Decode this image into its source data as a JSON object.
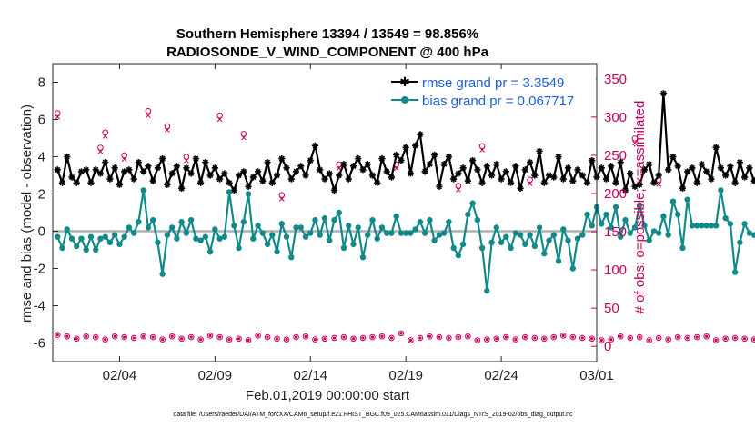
{
  "chart_data": {
    "type": "line",
    "title": "Southern Hemisphere 13394 / 13549 = 98.856%",
    "subtitle": "RADIOSONDE_V_WIND_COMPONENT @ 400 hPa",
    "xlabel": "Feb.01,2019 00:00:00 start",
    "ylabel": "rmse and bias (model - observation)",
    "y2label": "# of obs: o=possible; ×=assimilated",
    "footnote": "data file: /Users/raeder/DAI/ATM_forcXX/CAM6_setup/f.e21.FHIST_BGC.f09_025.CAM6assim.011/Diags_NTrS_2019-02/obs_diag_output.nc",
    "xlim": [
      0.5,
      29
    ],
    "ylim": [
      -7,
      9
    ],
    "y2lim": [
      -20,
      370
    ],
    "x_ticks": [
      {
        "value": 4,
        "label": "02/04"
      },
      {
        "value": 9,
        "label": "02/09"
      },
      {
        "value": 14,
        "label": "02/14"
      },
      {
        "value": 19,
        "label": "02/19"
      },
      {
        "value": 24,
        "label": "02/24"
      },
      {
        "value": 29,
        "label": "03/01"
      }
    ],
    "y_ticks": [
      {
        "value": 8,
        "label": "8"
      },
      {
        "value": 6,
        "label": "6"
      },
      {
        "value": 4,
        "label": "4"
      },
      {
        "value": 2,
        "label": "2"
      },
      {
        "value": 0,
        "label": "0"
      },
      {
        "value": -2,
        "label": "-2"
      },
      {
        "value": -4,
        "label": "-4"
      },
      {
        "value": -6,
        "label": "-6"
      }
    ],
    "y2_ticks": [
      {
        "value": 350,
        "label": "350"
      },
      {
        "value": 300,
        "label": "300"
      },
      {
        "value": 250,
        "label": "250"
      },
      {
        "value": 200,
        "label": "200"
      },
      {
        "value": 150,
        "label": "150"
      },
      {
        "value": 100,
        "label": "100"
      },
      {
        "value": 50,
        "label": "50"
      },
      {
        "value": 0,
        "label": "0"
      }
    ],
    "x_start": 0.75,
    "x_step": 0.25,
    "series": [
      {
        "name": "rmse grand pr = 3.3549",
        "color": "#000000",
        "marker": "asterisk",
        "values": [
          3.3,
          2.6,
          4.0,
          2.9,
          2.6,
          3.2,
          3.3,
          2.6,
          3.3,
          3.1,
          3.7,
          2.8,
          3.4,
          2.5,
          3.2,
          3.3,
          2.8,
          3.7,
          3.2,
          3.5,
          2.7,
          3.4,
          3.9,
          2.5,
          3.1,
          3.5,
          2.3,
          3.4,
          3.1,
          3.9,
          2.6,
          3.7,
          3.0,
          3.4,
          2.8,
          3.1,
          2.6,
          2.2,
          3.0,
          3.2,
          2.4,
          2.9,
          3.2,
          2.7,
          3.7,
          2.6,
          3.0,
          3.9,
          3.4,
          2.8,
          3.2,
          3.5,
          3.0,
          3.8,
          4.6,
          3.3,
          2.8,
          3.1,
          2.2,
          3.0,
          3.6,
          2.8,
          3.5,
          3.9,
          3.3,
          3.6,
          3.0,
          2.6,
          3.9,
          3.2,
          2.9,
          4.1,
          3.8,
          4.5,
          3.1,
          4.6,
          5.2,
          3.2,
          3.6,
          4.1,
          2.4,
          3.6,
          4.0,
          2.8,
          3.1,
          3.4,
          2.7,
          3.8,
          3.3,
          2.6,
          3.5,
          3.0,
          3.6,
          2.8,
          3.2,
          2.6,
          3.5,
          2.3,
          3.3,
          3.7,
          3.0,
          4.3,
          2.6,
          3.0,
          2.9,
          4.0,
          2.8,
          3.4,
          2.7,
          3.3,
          3.0,
          2.6,
          3.8,
          2.9,
          3.4,
          2.8,
          3.5,
          2.6,
          3.7,
          2.2,
          3.1,
          2.4,
          2.5,
          3.3,
          3.6,
          2.6,
          3.0,
          7.4,
          3.3,
          4.0,
          3.5,
          2.3,
          3.2,
          3.4,
          2.6,
          3.6,
          3.2,
          2.8,
          4.5,
          3.4,
          3.0,
          3.5,
          2.6,
          3.7,
          2.9,
          3.4,
          2.7,
          3.3,
          2.5,
          3.9,
          2.6,
          3.4,
          2.1,
          3.5,
          2.9,
          3.9
        ]
      },
      {
        "name": "bias grand pr = 0.067717",
        "color": "#138a8a",
        "marker": "dot",
        "values": [
          -0.3,
          -0.9,
          0.1,
          -0.4,
          -0.8,
          -0.4,
          -1.0,
          -0.3,
          -1.0,
          -0.4,
          -0.3,
          -0.6,
          -0.2,
          -0.7,
          -0.3,
          0.2,
          -0.1,
          0.5,
          2.2,
          0.2,
          0.6,
          -0.6,
          -2.3,
          -0.2,
          0.2,
          -0.4,
          0.5,
          -0.1,
          0.6,
          -0.4,
          -0.5,
          -0.3,
          -1.1,
          0.1,
          -0.4,
          -0.3,
          2.1,
          0.3,
          -0.9,
          0.5,
          2.0,
          -0.4,
          0.3,
          -0.1,
          -0.7,
          -0.2,
          -1.1,
          0.4,
          -0.3,
          -1.4,
          0.2,
          0.2,
          -0.3,
          -0.1,
          0.6,
          -0.2,
          0.7,
          -0.5,
          0.6,
          1.0,
          -0.9,
          0.3,
          -0.7,
          0.2,
          -1.4,
          -0.2,
          0.6,
          -0.4,
          0.2,
          -0.1,
          -0.1,
          0.8,
          -0.1,
          -0.1,
          -0.1,
          0.1,
          0.5,
          -0.1,
          0.6,
          -0.5,
          -0.2,
          -0.1,
          0.5,
          -0.9,
          -1.3,
          -0.7,
          0.9,
          1.5,
          0.6,
          -0.9,
          -3.2,
          -0.6,
          0.2,
          -0.6,
          -0.3,
          -0.9,
          -0.1,
          -0.2,
          -0.7,
          -0.2,
          -0.8,
          0.2,
          -1.2,
          -0.5,
          -0.2,
          -1.6,
          0.1,
          -0.5,
          -2.0,
          -0.4,
          -0.2,
          0.9,
          0.3,
          1.3,
          0.4,
          0.9,
          0.2,
          1.3,
          -0.3,
          0.6,
          -0.1,
          0.2,
          1.4,
          0.3,
          -0.5,
          0.0,
          -0.1,
          0.8,
          -0.2,
          1.6,
          0.9,
          -0.9,
          1.7,
          0.3,
          0.3,
          0.3,
          0.3,
          0.3,
          0.3,
          2.2,
          0.7,
          0.4,
          -2.2,
          -0.6,
          0.4,
          -0.1,
          -0.2,
          -0.7,
          0.4,
          2.2,
          0.2,
          -0.4,
          -0.1,
          0.4,
          -1.2,
          0.6,
          -0.2,
          -0.3
        ]
      }
    ],
    "obs_possible": [
      305,
      0,
      0,
      0,
      0,
      0,
      0,
      0,
      0,
      260,
      280,
      0,
      0,
      0,
      250,
      0,
      0,
      0,
      0,
      308,
      0,
      0,
      0,
      288,
      0,
      0,
      0,
      248,
      0,
      0,
      0,
      0,
      0,
      0,
      302,
      0,
      0,
      0,
      0,
      278,
      0,
      0,
      0,
      0,
      0,
      0,
      0,
      198,
      0,
      0,
      0,
      0,
      0,
      0,
      0,
      0,
      0,
      0,
      0,
      238,
      0,
      0,
      0,
      0,
      0,
      0,
      0,
      0,
      0,
      0,
      0,
      238,
      0,
      0,
      0,
      0,
      0,
      0,
      0,
      0,
      0,
      0,
      0,
      0,
      210,
      0,
      0,
      0,
      0,
      262,
      0,
      0,
      0,
      0,
      0,
      0,
      0,
      0,
      0,
      218,
      0,
      0,
      0,
      0,
      0,
      0,
      0,
      0,
      0,
      0,
      0,
      0,
      0,
      0,
      0,
      0,
      0,
      0,
      0,
      0,
      0,
      272,
      0,
      0,
      0,
      0,
      218,
      0,
      0,
      0,
      0,
      0,
      0,
      0,
      0,
      0,
      0,
      0,
      0,
      0,
      0,
      0,
      0,
      0,
      0,
      0,
      0,
      0,
      0,
      0,
      0,
      0,
      0,
      0,
      0,
      0,
      0,
      0
    ],
    "obs_assim": [
      300,
      0,
      0,
      0,
      0,
      0,
      0,
      0,
      0,
      255,
      275,
      0,
      0,
      0,
      245,
      0,
      0,
      0,
      0,
      302,
      0,
      0,
      0,
      283,
      0,
      0,
      0,
      243,
      0,
      0,
      0,
      0,
      0,
      0,
      297,
      0,
      0,
      0,
      0,
      273,
      0,
      0,
      0,
      0,
      0,
      0,
      0,
      193,
      0,
      0,
      0,
      0,
      0,
      0,
      0,
      0,
      0,
      0,
      0,
      233,
      0,
      0,
      0,
      0,
      0,
      0,
      0,
      0,
      0,
      0,
      0,
      233,
      0,
      0,
      0,
      0,
      0,
      0,
      0,
      0,
      0,
      0,
      0,
      0,
      205,
      0,
      0,
      0,
      0,
      257,
      0,
      0,
      0,
      0,
      0,
      0,
      0,
      0,
      0,
      213,
      0,
      0,
      0,
      0,
      0,
      0,
      0,
      0,
      0,
      0,
      0,
      0,
      0,
      0,
      0,
      0,
      0,
      0,
      0,
      0,
      0,
      266,
      0,
      0,
      0,
      0,
      212,
      0,
      0,
      0,
      0,
      0,
      0,
      0,
      0,
      0,
      0,
      0,
      0,
      0,
      0,
      0,
      0,
      0,
      0,
      0,
      0,
      0,
      0,
      0,
      0,
      0,
      0,
      0,
      0,
      0,
      0,
      0
    ],
    "obs_low": [
      15,
      12,
      13,
      14,
      10,
      11,
      13,
      8,
      12,
      11,
      9,
      14,
      13,
      10,
      12,
      8,
      11,
      18,
      13,
      10,
      12,
      14,
      9,
      11,
      13,
      12,
      10,
      8,
      12,
      11,
      9,
      13,
      14,
      10,
      12,
      11,
      9,
      13,
      10,
      12,
      8,
      11,
      14,
      9,
      12,
      13,
      10,
      11,
      9,
      7,
      12,
      10,
      13,
      11,
      9,
      12,
      10,
      14,
      11,
      8,
      12,
      13,
      10,
      9,
      11,
      14,
      12,
      10,
      13,
      9,
      11,
      12,
      17,
      10,
      8,
      12,
      11,
      9,
      13,
      10,
      12,
      14,
      11,
      9,
      12,
      10,
      13,
      11,
      8,
      12,
      9,
      14,
      10,
      11,
      12,
      13,
      9,
      10,
      12,
      8,
      11,
      13,
      10,
      9,
      12,
      11,
      14,
      10,
      12,
      9,
      11,
      13,
      10,
      12,
      8,
      11,
      9,
      12,
      13,
      10,
      11,
      9,
      12,
      10,
      8,
      12,
      11,
      13,
      9,
      10,
      12,
      3,
      11,
      9,
      12,
      10,
      13,
      11,
      8,
      12,
      10,
      9,
      11,
      12,
      10,
      13,
      9,
      11,
      10,
      12,
      8,
      11,
      9,
      10,
      12,
      7,
      4,
      -2
    ],
    "legend": {
      "rmse_label": "rmse grand pr = 3.3549",
      "bias_label": "bias grand pr = 0.067717"
    }
  }
}
